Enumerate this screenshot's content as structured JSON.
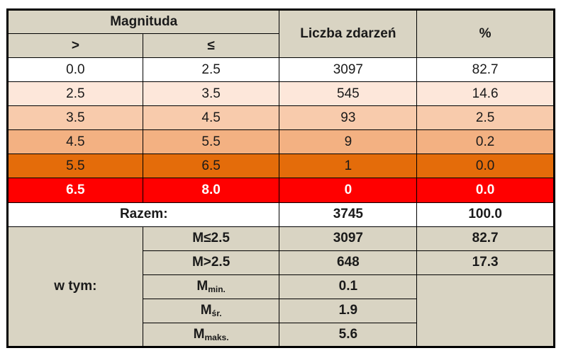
{
  "header": {
    "magnitude": "Magnituda",
    "gt": ">",
    "le": "≤",
    "count": "Liczba zdarzeń",
    "pct": "%"
  },
  "rows": [
    {
      "from": "0.0",
      "to": "2.5",
      "count": "3097",
      "pct": "82.7",
      "color": "#ffffff"
    },
    {
      "from": "2.5",
      "to": "3.5",
      "count": "545",
      "pct": "14.6",
      "color": "#fde7da"
    },
    {
      "from": "3.5",
      "to": "4.5",
      "count": "93",
      "pct": "2.5",
      "color": "#f8cbac"
    },
    {
      "from": "4.5",
      "to": "5.5",
      "count": "9",
      "pct": "0.2",
      "color": "#f3b182"
    },
    {
      "from": "5.5",
      "to": "6.5",
      "count": "1",
      "pct": "0.0",
      "color": "#e46c0a"
    },
    {
      "from": "6.5",
      "to": "8.0",
      "count": "0",
      "pct": "0.0",
      "color": "#ff0000"
    }
  ],
  "total": {
    "label": "Razem:",
    "count": "3745",
    "pct": "100.0"
  },
  "breakdown": {
    "label": "w tym:",
    "items": [
      {
        "label": "M≤2.5",
        "count": "3097",
        "pct": "82.7"
      },
      {
        "label": "M>2.5",
        "count": "648",
        "pct": "17.3"
      },
      {
        "main": "M",
        "sub": "min.",
        "value": "0.1"
      },
      {
        "main": "M",
        "sub": "śr.",
        "value": "1.9"
      },
      {
        "main": "M",
        "sub": "maks.",
        "value": "5.6"
      }
    ]
  }
}
